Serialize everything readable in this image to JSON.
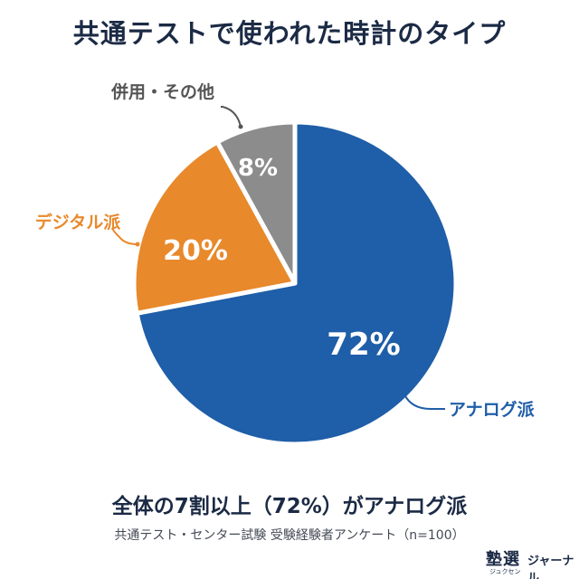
{
  "title": "共通テストで使われた時計のタイプ",
  "chart_data": {
    "type": "pie",
    "title": "共通テストで使われた時計のタイプ",
    "slices": [
      {
        "label": "アナログ派",
        "value": 72,
        "display": "72%",
        "color": "#1f5ea8"
      },
      {
        "label": "デジタル派",
        "value": 20,
        "display": "20%",
        "color": "#e8892b"
      },
      {
        "label": "併用・その他",
        "value": 8,
        "display": "8%",
        "color": "#8c8c8c"
      }
    ],
    "start_angle_deg": 0,
    "direction": "clockwise"
  },
  "summary": "全体の7割以上（72%）がアナログ派",
  "source": "共通テスト・センター試験 受験経験者アンケート（n=100）",
  "logo": {
    "main": "塾選",
    "sub": "ジュクセン",
    "side": "ジャーナル"
  }
}
